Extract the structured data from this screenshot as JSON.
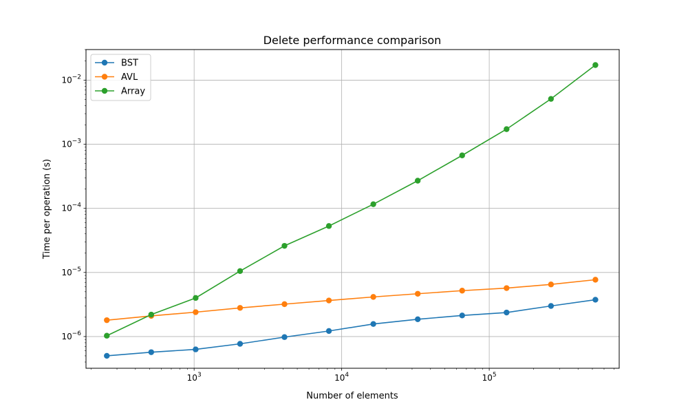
{
  "chart_data": {
    "type": "line",
    "title": "Delete performance comparison",
    "xlabel": "Number of elements",
    "ylabel": "Time per operation (s)",
    "xscale": "log",
    "yscale": "log",
    "xlim": [
      185,
      760000
    ],
    "ylim": [
      3.2e-07,
      0.03
    ],
    "grid": true,
    "legend_position": "top-left",
    "x_major_ticks": [
      {
        "value": 1000,
        "base": "10",
        "exp": "3"
      },
      {
        "value": 10000,
        "base": "10",
        "exp": "4"
      },
      {
        "value": 100000,
        "base": "10",
        "exp": "5"
      }
    ],
    "y_major_ticks": [
      {
        "value": 1e-06,
        "base": "10",
        "exp": "−6"
      },
      {
        "value": 1e-05,
        "base": "10",
        "exp": "−5"
      },
      {
        "value": 0.0001,
        "base": "10",
        "exp": "−4"
      },
      {
        "value": 0.001,
        "base": "10",
        "exp": "−3"
      },
      {
        "value": 0.01,
        "base": "10",
        "exp": "−2"
      }
    ],
    "x": [
      256,
      512,
      1024,
      2048,
      4096,
      8192,
      16384,
      32768,
      65536,
      131072,
      262144,
      524288
    ],
    "series": [
      {
        "name": "BST",
        "color": "#1f77b4",
        "values": [
          5e-07,
          5.7e-07,
          6.3e-07,
          7.7e-07,
          9.8e-07,
          1.22e-06,
          1.57e-06,
          1.86e-06,
          2.13e-06,
          2.37e-06,
          3e-06,
          3.75e-06
        ]
      },
      {
        "name": "AVL",
        "color": "#ff7f0e",
        "values": [
          1.8e-06,
          2.1e-06,
          2.4e-06,
          2.8e-06,
          3.2e-06,
          3.65e-06,
          4.15e-06,
          4.65e-06,
          5.2e-06,
          5.7e-06,
          6.5e-06,
          7.7e-06
        ]
      },
      {
        "name": "Array",
        "color": "#2ca02c",
        "values": [
          1.03e-06,
          2.2e-06,
          4e-06,
          1.05e-05,
          2.6e-05,
          5.3e-05,
          0.000116,
          0.00027,
          0.00067,
          0.00172,
          0.0051,
          0.0172
        ]
      }
    ]
  }
}
